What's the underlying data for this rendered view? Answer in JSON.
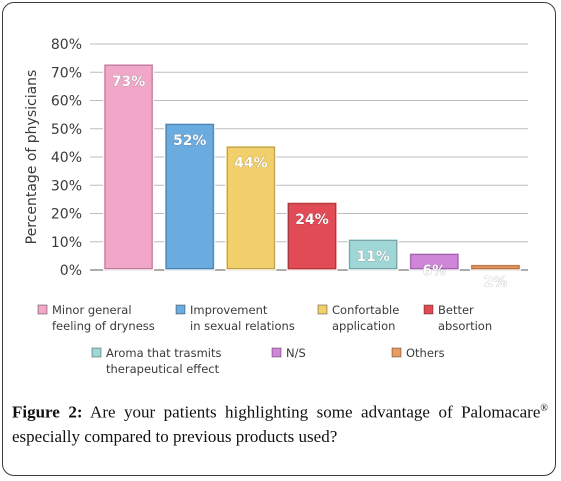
{
  "chart_data": {
    "type": "bar",
    "ylabel": "Percentage of physicians",
    "ylim": [
      0,
      80
    ],
    "yticks": [
      "0%",
      "10%",
      "20%",
      "30%",
      "40%",
      "50%",
      "60%",
      "70%",
      "80%"
    ],
    "grid": true,
    "legend_placement": "bottom",
    "categories": [
      "Minor general feeling of dryness",
      "Improvement in sexual relations",
      "Confortable application",
      "Better absortion",
      "Aroma that trasmits therapeutical effect",
      "N/S",
      "Others"
    ],
    "values": [
      73,
      52,
      44,
      24,
      11,
      6,
      2
    ],
    "data_labels": [
      "73%",
      "52%",
      "44%",
      "24%",
      "11%",
      "6%",
      "2%"
    ],
    "colors": [
      "#f0a7c8",
      "#6aabe0",
      "#f1d06b",
      "#e14b55",
      "#9fd7d6",
      "#cf86d8",
      "#e89a61"
    ],
    "legend": [
      {
        "line1": "Minor general",
        "line2": "feeling of dryness"
      },
      {
        "line1": "Improvement",
        "line2": "in sexual relations"
      },
      {
        "line1": "Confortable",
        "line2": "application"
      },
      {
        "line1": "Better",
        "line2": "absortion"
      },
      {
        "line1": "Aroma that trasmits",
        "line2": "therapeutical effect"
      },
      {
        "line1": "N/S",
        "line2": ""
      },
      {
        "line1": "Others",
        "line2": ""
      }
    ]
  },
  "caption": {
    "figure_label": "Figure 2:",
    "text_part1": " Are your patients highlighting some advantage of Palomacare",
    "superscript": "®",
    "text_part2": " especially compared to previous products used?"
  }
}
